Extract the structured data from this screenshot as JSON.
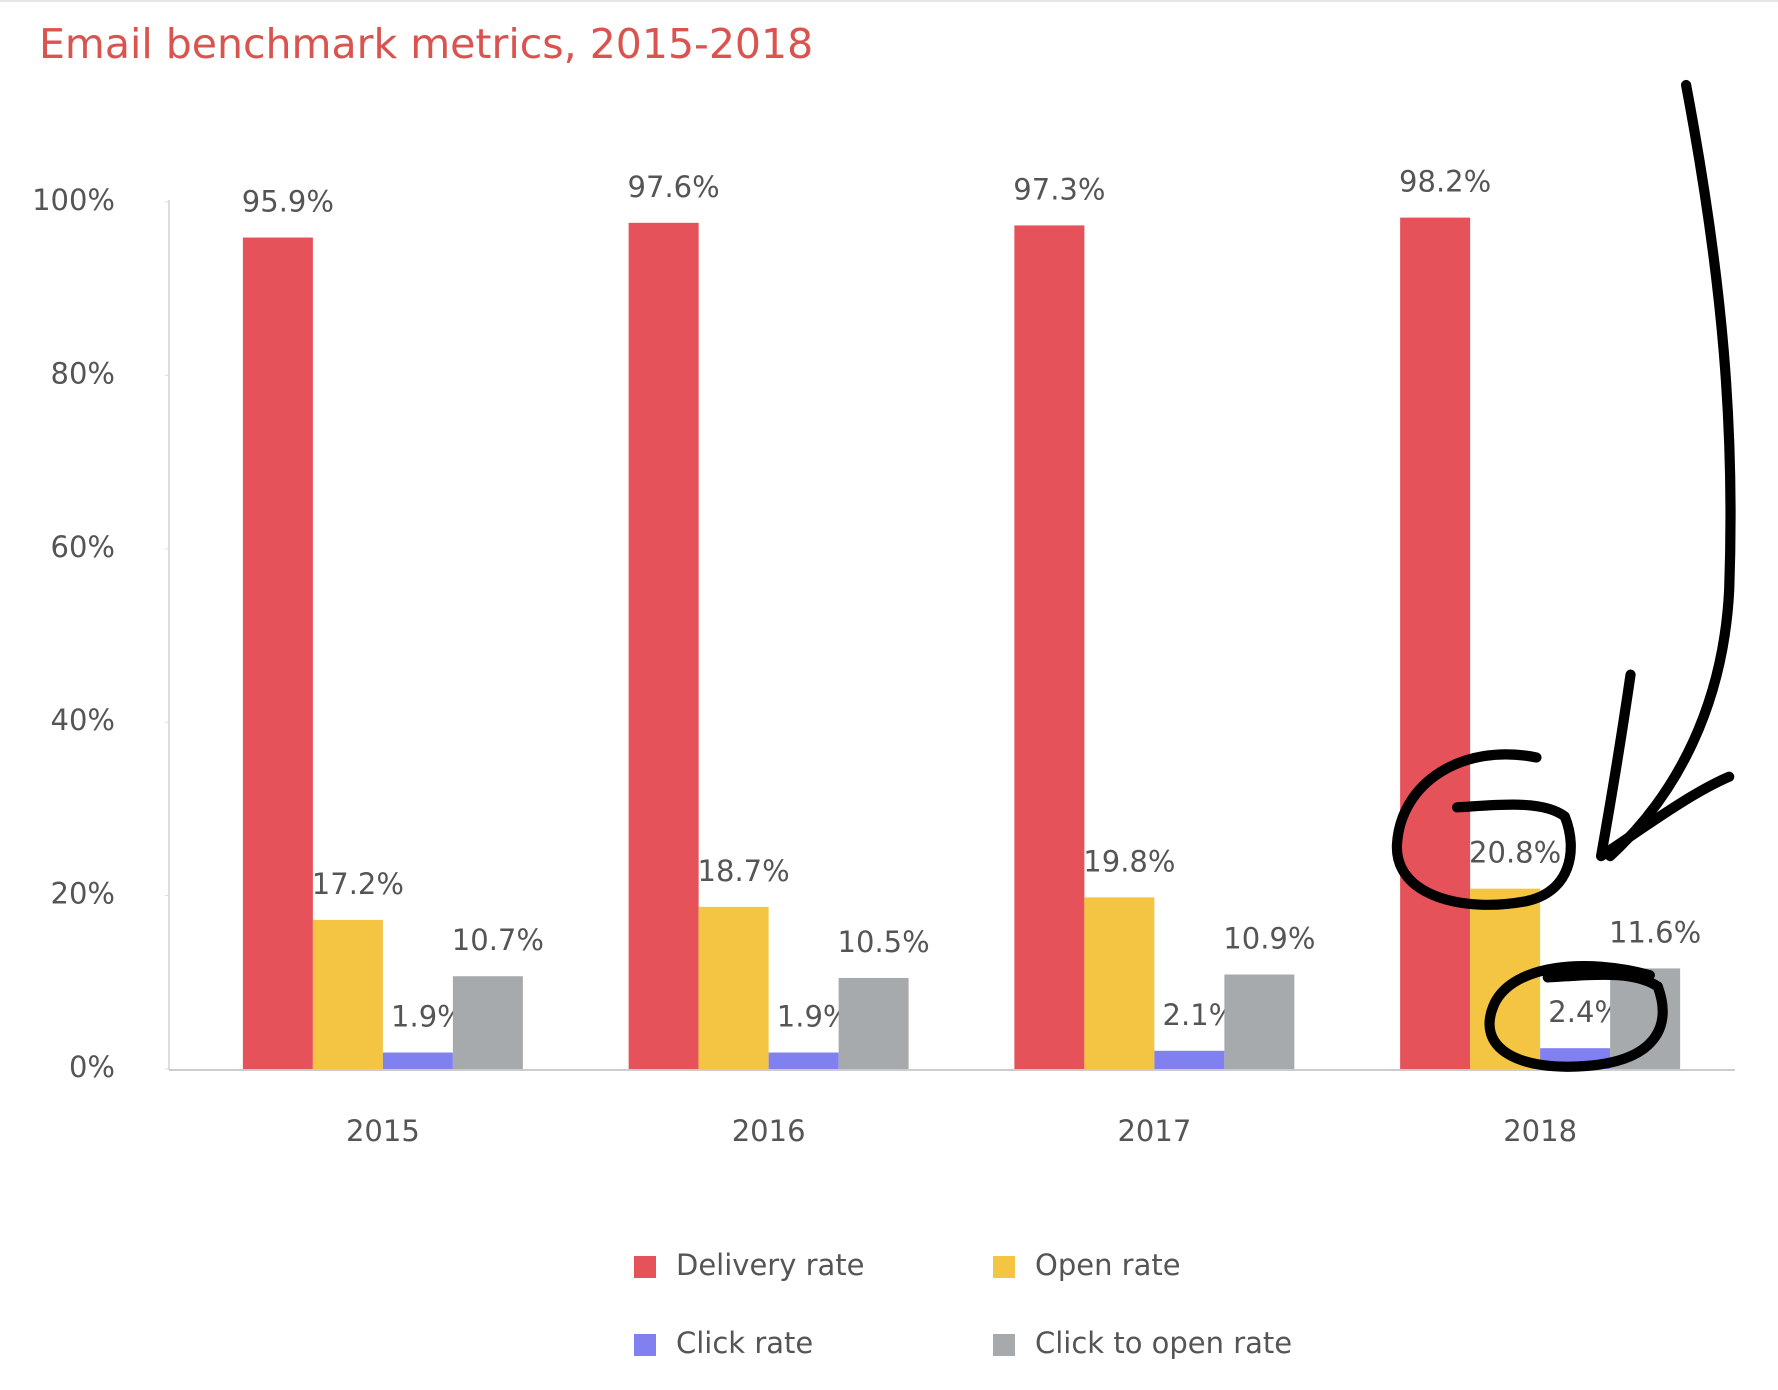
{
  "chart_data": {
    "type": "bar",
    "title": "Email benchmark metrics, 2015-2018",
    "categories": [
      "2015",
      "2016",
      "2017",
      "2018"
    ],
    "series": [
      {
        "name": "Delivery rate",
        "color": "#e5525a",
        "values": [
          95.9,
          97.6,
          97.3,
          98.2
        ],
        "value_labels": [
          "95.9%",
          "97.6%",
          "97.3%",
          "98.2%"
        ]
      },
      {
        "name": "Open rate",
        "color": "#f4c542",
        "values": [
          17.2,
          18.7,
          19.8,
          20.8
        ],
        "value_labels": [
          "17.2%",
          "18.7%",
          "19.8%",
          "20.8%"
        ]
      },
      {
        "name": "Click rate",
        "color": "#8080f0",
        "values": [
          1.9,
          1.9,
          2.1,
          2.4
        ],
        "value_labels": [
          "1.9%",
          "1.9%",
          "2.1%",
          "2.4%"
        ]
      },
      {
        "name": "Click to open rate",
        "color": "#a6aaad",
        "values": [
          10.7,
          10.5,
          10.9,
          11.6
        ],
        "value_labels": [
          "10.7%",
          "10.5%",
          "10.9%",
          "11.6%"
        ]
      }
    ],
    "ylim": [
      0,
      100
    ],
    "yticks": [
      {
        "value": 0,
        "label": "0%"
      },
      {
        "value": 20,
        "label": "20%"
      },
      {
        "value": 40,
        "label": "40%"
      },
      {
        "value": 60,
        "label": "60%"
      },
      {
        "value": 80,
        "label": "80%"
      },
      {
        "value": 100,
        "label": "100%"
      }
    ],
    "grid": false,
    "legend": "bottom"
  }
}
